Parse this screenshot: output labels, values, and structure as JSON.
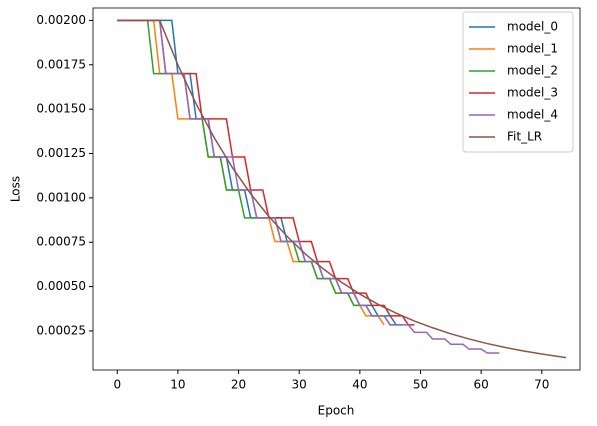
{
  "chart_data": {
    "type": "line",
    "xlabel": "Epoch",
    "ylabel": "Loss",
    "xlim": [
      -4,
      76.3
    ],
    "xticks": [
      0,
      10,
      20,
      30,
      40,
      50,
      60,
      70
    ],
    "ylim": [
      3e-05,
      0.00207
    ],
    "yticks": [
      {
        "value": 0.00025,
        "label": "0.00025"
      },
      {
        "value": 0.0005,
        "label": "0.00050"
      },
      {
        "value": 0.00075,
        "label": "0.00075"
      },
      {
        "value": 0.001,
        "label": "0.00100"
      },
      {
        "value": 0.00125,
        "label": "0.00125"
      },
      {
        "value": 0.0015,
        "label": "0.00150"
      },
      {
        "value": 0.00175,
        "label": "0.00175"
      },
      {
        "value": 0.002,
        "label": "0.00200"
      }
    ],
    "legend": "upper right",
    "series": [
      {
        "name": "model_0",
        "color": "#1f77b4",
        "x": [
          0,
          9,
          10,
          12,
          13,
          15,
          16,
          18,
          19,
          21,
          22,
          27,
          28,
          30,
          31,
          33,
          34,
          36,
          37,
          39,
          40,
          42,
          43,
          45,
          46,
          47
        ],
        "values": [
          0.002,
          0.002,
          0.0017,
          0.0017,
          0.001445,
          0.001445,
          0.00123,
          0.00123,
          0.001044,
          0.001044,
          0.000887,
          0.000887,
          0.000754,
          0.000754,
          0.000641,
          0.000641,
          0.000545,
          0.000545,
          0.000463,
          0.000463,
          0.000394,
          0.000394,
          0.000335,
          0.000335,
          0.000284,
          0.000284
        ]
      },
      {
        "name": "model_1",
        "color": "#ff7f0e",
        "x": [
          0,
          6,
          7,
          9,
          10,
          14,
          15,
          17,
          18,
          22,
          23,
          25,
          26,
          28,
          29,
          32,
          33,
          35,
          36,
          38,
          39,
          40,
          41,
          43,
          44
        ],
        "values": [
          0.002,
          0.002,
          0.0017,
          0.0017,
          0.001445,
          0.001445,
          0.00123,
          0.00123,
          0.001044,
          0.001044,
          0.000887,
          0.000887,
          0.000754,
          0.000754,
          0.000641,
          0.000641,
          0.000545,
          0.000545,
          0.000463,
          0.000463,
          0.000394,
          0.000394,
          0.000335,
          0.000335,
          0.000284
        ]
      },
      {
        "name": "model_2",
        "color": "#2ca02c",
        "x": [
          0,
          5,
          6,
          11,
          12,
          14,
          15,
          17,
          18,
          20,
          21,
          26,
          27,
          29,
          30,
          32,
          33,
          35,
          36,
          38,
          39,
          41,
          42,
          44,
          45,
          46
        ],
        "values": [
          0.002,
          0.002,
          0.0017,
          0.0017,
          0.001445,
          0.001445,
          0.00123,
          0.00123,
          0.001044,
          0.001044,
          0.000887,
          0.000887,
          0.000754,
          0.000754,
          0.000641,
          0.000641,
          0.000545,
          0.000545,
          0.000463,
          0.000463,
          0.000394,
          0.000394,
          0.000335,
          0.000335,
          0.000284,
          0.000284
        ]
      },
      {
        "name": "model_3",
        "color": "#d62728",
        "x": [
          0,
          7,
          8,
          13,
          14,
          18,
          19,
          21,
          22,
          24,
          25,
          29,
          30,
          32,
          33,
          35,
          36,
          38,
          39,
          41,
          42,
          44,
          45,
          47,
          48,
          49
        ],
        "values": [
          0.002,
          0.002,
          0.0017,
          0.0017,
          0.001445,
          0.001445,
          0.00123,
          0.00123,
          0.001044,
          0.001044,
          0.000887,
          0.000887,
          0.000754,
          0.000754,
          0.000641,
          0.000641,
          0.000545,
          0.000545,
          0.000463,
          0.000463,
          0.000394,
          0.000394,
          0.000335,
          0.000335,
          0.000284,
          0.000284
        ]
      },
      {
        "name": "model_4",
        "color": "#9467bd",
        "x": [
          0,
          7,
          8,
          11,
          12,
          15,
          16,
          19,
          20,
          22,
          23,
          26,
          27,
          30,
          31,
          33,
          34,
          36,
          37,
          39,
          40,
          41,
          42,
          44,
          45,
          48,
          49,
          51,
          52,
          54,
          55,
          57,
          58,
          60,
          61,
          63
        ],
        "values": [
          0.002,
          0.002,
          0.0017,
          0.0017,
          0.001445,
          0.001445,
          0.00123,
          0.00123,
          0.001044,
          0.001044,
          0.000887,
          0.000887,
          0.000754,
          0.000754,
          0.000641,
          0.000641,
          0.000545,
          0.000545,
          0.000463,
          0.000463,
          0.000394,
          0.000394,
          0.000335,
          0.000335,
          0.000284,
          0.000284,
          0.000242,
          0.000242,
          0.000205,
          0.000205,
          0.000175,
          0.000175,
          0.000148,
          0.000148,
          0.000126,
          0.000126
        ]
      },
      {
        "name": "Fit_LR",
        "color": "#8c564b",
        "x": [
          0,
          7,
          10,
          13,
          16,
          19,
          22,
          25,
          28,
          31,
          34,
          37,
          40,
          43,
          46,
          49,
          52,
          55,
          58,
          61,
          64,
          67,
          70,
          74
        ],
        "values": [
          0.002,
          0.002,
          0.001749,
          0.00153,
          0.001338,
          0.00117,
          0.001023,
          0.000895,
          0.000783,
          0.000684,
          0.000599,
          0.000524,
          0.000458,
          0.0004,
          0.00035,
          0.000306,
          0.000268,
          0.000234,
          0.000205,
          0.000179,
          0.000157,
          0.000137,
          0.00012,
          0.0001
        ]
      }
    ]
  }
}
